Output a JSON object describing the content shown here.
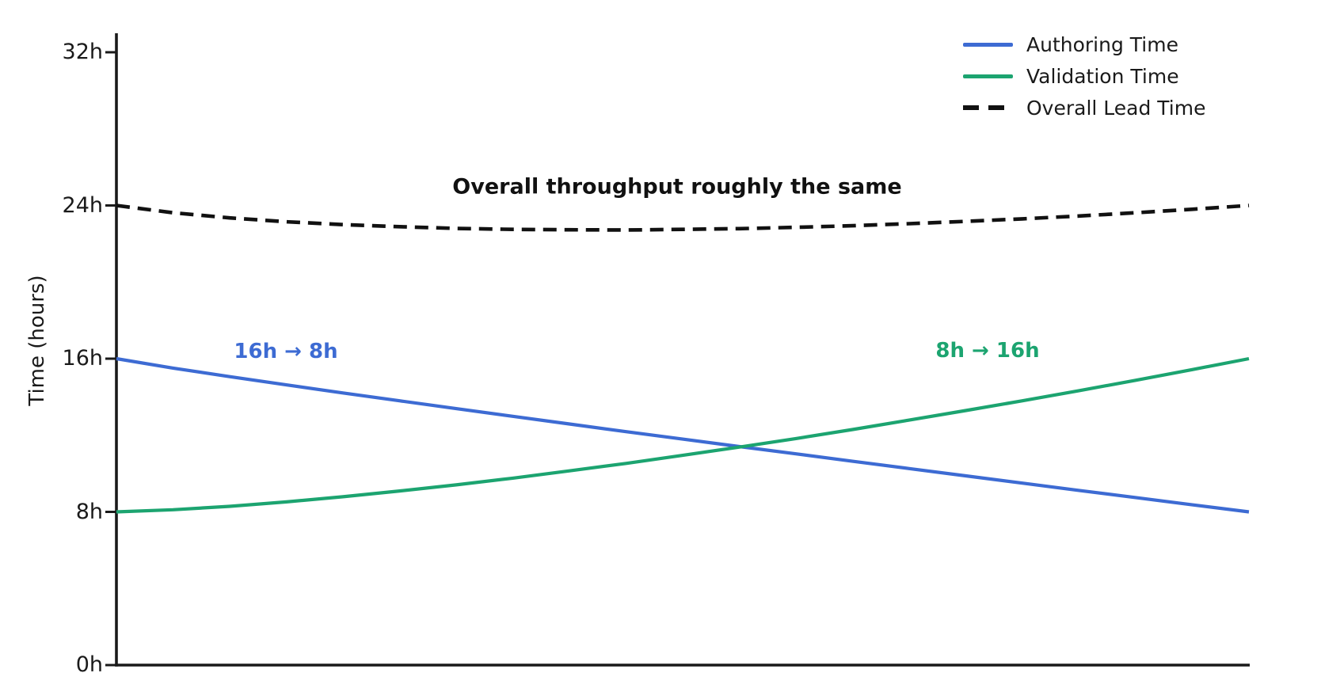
{
  "figure": {
    "background": "#ffffff",
    "axis_color": "#1a1a1a"
  },
  "chart_data": {
    "type": "line",
    "title": "",
    "xlabel": "",
    "ylabel": "Time (hours)",
    "ylim": [
      0,
      33
    ],
    "xlim": [
      0,
      1
    ],
    "grid": false,
    "x_axis_tick_labels": [],
    "yticks": [
      {
        "value": 0,
        "label": "0h"
      },
      {
        "value": 8,
        "label": "8h"
      },
      {
        "value": 16,
        "label": "16h"
      },
      {
        "value": 24,
        "label": "24h"
      },
      {
        "value": 32,
        "label": "32h"
      }
    ],
    "x_normalized": [
      0,
      0.05,
      0.1,
      0.15,
      0.2,
      0.25,
      0.3,
      0.35,
      0.4,
      0.45,
      0.5,
      0.55,
      0.6,
      0.65,
      0.7,
      0.75,
      0.8,
      0.85,
      0.9,
      0.95,
      1
    ],
    "series": [
      {
        "name": "Authoring Time",
        "color": "#3D6BD3",
        "style": "solid",
        "start_value_h": 16,
        "end_value_h": 8,
        "values": [
          16,
          15.51,
          15.06,
          14.63,
          14.21,
          13.8,
          13.39,
          12.99,
          12.59,
          12.19,
          11.8,
          11.41,
          11.03,
          10.64,
          10.26,
          9.88,
          9.5,
          9.12,
          8.75,
          8.37,
          8
        ]
      },
      {
        "name": "Validation Time",
        "color": "#1CA470",
        "style": "solid",
        "start_value_h": 8,
        "end_value_h": 16,
        "values": [
          8,
          8.11,
          8.29,
          8.52,
          8.79,
          9.09,
          9.41,
          9.76,
          10.14,
          10.53,
          10.95,
          11.38,
          11.83,
          12.3,
          12.79,
          13.29,
          13.8,
          14.33,
          14.87,
          15.43,
          16
        ]
      },
      {
        "name": "Overall Lead Time",
        "color": "#111111",
        "style": "dashed",
        "start_value_h": 24,
        "end_value_h": 24,
        "values": [
          24,
          23.62,
          23.35,
          23.15,
          23,
          22.89,
          22.8,
          22.75,
          22.73,
          22.72,
          22.75,
          22.79,
          22.86,
          22.94,
          23.05,
          23.17,
          23.3,
          23.45,
          23.62,
          23.8,
          24
        ]
      }
    ],
    "legend": {
      "position": "upper right",
      "entries": [
        "Authoring Time",
        "Validation Time",
        "Overall Lead Time"
      ]
    },
    "annotations": [
      {
        "text": "Overall throughput roughly the same",
        "color": "#111111",
        "bold": true
      },
      {
        "text": "16h → 8h",
        "color": "#3D6BD3",
        "bold": true
      },
      {
        "text": "8h → 16h",
        "color": "#1CA470",
        "bold": true
      }
    ]
  }
}
